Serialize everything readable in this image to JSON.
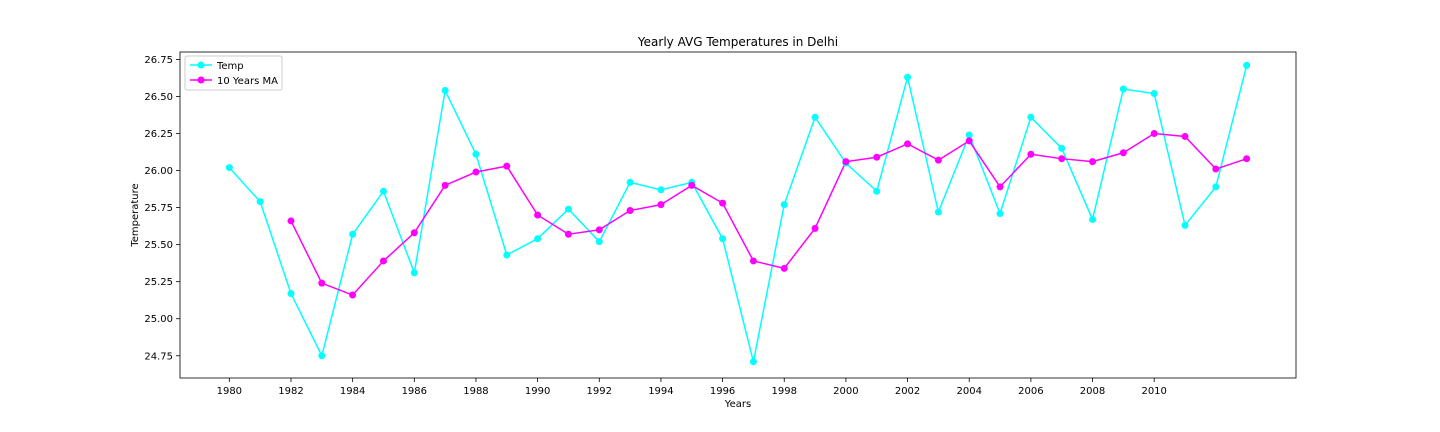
{
  "chart_data": {
    "type": "line",
    "title": "Yearly AVG Temperatures in Delhi",
    "xlabel": "Years",
    "ylabel": "Temperature",
    "x": [
      1980,
      1981,
      1982,
      1983,
      1984,
      1985,
      1986,
      1987,
      1988,
      1989,
      1990,
      1991,
      1992,
      1993,
      1994,
      1995,
      1996,
      1997,
      1998,
      1999,
      2000,
      2001,
      2002,
      2003,
      2004,
      2005,
      2006,
      2007,
      2008,
      2009,
      2010,
      2011,
      2012,
      2013
    ],
    "xlim": [
      1978.4,
      2014.6
    ],
    "ylim": [
      24.6,
      26.8
    ],
    "x_ticks": [
      1980,
      1982,
      1984,
      1986,
      1988,
      1990,
      1992,
      1994,
      1996,
      1998,
      2000,
      2002,
      2004,
      2006,
      2008,
      2010
    ],
    "x_tick_labels": [
      "1980",
      "1982",
      "1984",
      "1986",
      "1988",
      "1990",
      "1992",
      "1994",
      "1996",
      "1998",
      "2000",
      "2002",
      "2004",
      "2006",
      "2008",
      "2010"
    ],
    "y_ticks": [
      24.75,
      25.0,
      25.25,
      25.5,
      25.75,
      26.0,
      26.25,
      26.5,
      26.75
    ],
    "y_tick_labels": [
      "24.75",
      "25.00",
      "25.25",
      "25.50",
      "25.75",
      "26.00",
      "26.25",
      "26.50",
      "26.75"
    ],
    "grid": false,
    "legend_position": "top-left",
    "series": [
      {
        "name": "Temp",
        "color": "#00ffff",
        "values": [
          26.02,
          25.79,
          25.17,
          24.75,
          25.57,
          25.86,
          25.31,
          26.54,
          26.11,
          25.43,
          25.54,
          25.74,
          25.52,
          25.92,
          25.87,
          25.92,
          25.54,
          24.71,
          25.77,
          26.36,
          26.05,
          25.86,
          26.63,
          25.72,
          26.24,
          25.71,
          26.36,
          26.15,
          25.67,
          26.55,
          26.52,
          25.63,
          25.89,
          26.71
        ]
      },
      {
        "name": "10 Years MA",
        "color": "#ff00ff",
        "values": [
          null,
          null,
          25.66,
          25.24,
          25.16,
          25.39,
          25.58,
          25.9,
          25.99,
          26.03,
          25.7,
          25.57,
          25.6,
          25.73,
          25.77,
          25.9,
          25.78,
          25.39,
          25.34,
          25.61,
          26.06,
          26.09,
          26.18,
          26.07,
          26.2,
          25.89,
          26.11,
          26.08,
          26.06,
          26.12,
          26.25,
          26.23,
          26.01,
          26.08
        ]
      }
    ]
  }
}
